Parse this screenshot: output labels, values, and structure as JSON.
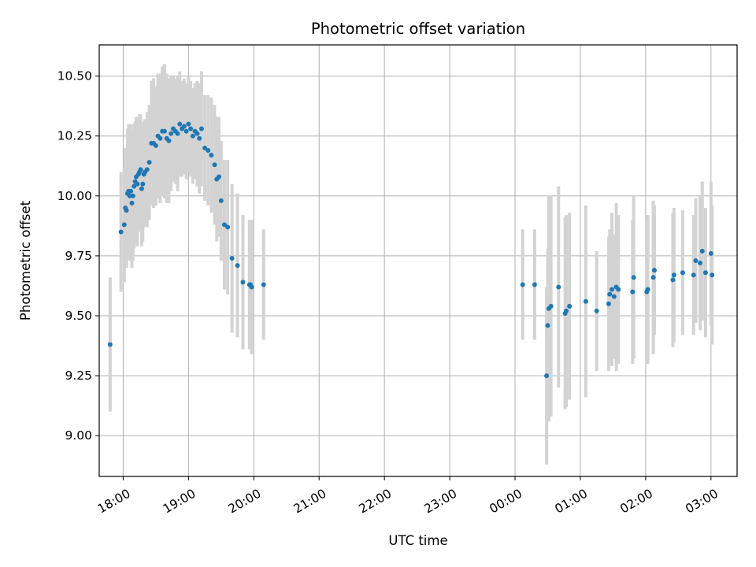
{
  "chart_data": {
    "type": "scatter",
    "title": "Photometric offset variation",
    "xlabel": "UTC time",
    "ylabel": "Photometric offset",
    "x_ticks": [
      "18:00",
      "19:00",
      "20:00",
      "21:00",
      "22:00",
      "23:00",
      "00:00",
      "01:00",
      "02:00",
      "03:00"
    ],
    "y_ticks": [
      "9.00",
      "9.25",
      "9.50",
      "9.75",
      "10.00",
      "10.25",
      "10.50"
    ],
    "xlim": [
      "17:38",
      "03:24"
    ],
    "ylim": [
      8.83,
      10.63
    ],
    "grid": true,
    "legend": "none",
    "colors": {
      "point": "#1f77b4",
      "errorbar": "#d3d3d3",
      "grid": "#b0b0b0"
    },
    "series": [
      {
        "x": [
          "17:48",
          "17:58",
          "18:01",
          "18:02",
          "18:03",
          "18:04",
          "18:05",
          "18:06",
          "18:07",
          "18:08",
          "18:09",
          "18:10",
          "18:11",
          "18:12",
          "18:13",
          "18:14",
          "18:15",
          "18:16",
          "18:17",
          "18:18",
          "18:19",
          "18:20",
          "18:22",
          "18:24",
          "18:26",
          "18:28",
          "18:30",
          "18:32",
          "18:34",
          "18:36",
          "18:38",
          "18:40",
          "18:42",
          "18:44",
          "18:46",
          "18:48",
          "18:50",
          "18:52",
          "18:54",
          "18:56",
          "18:58",
          "19:00",
          "19:02",
          "19:04",
          "19:06",
          "19:08",
          "19:10",
          "19:12",
          "19:15",
          "19:18",
          "19:21",
          "19:24",
          "19:26",
          "19:28",
          "19:30",
          "19:33",
          "19:36",
          "19:40",
          "19:45",
          "19:50",
          "19:56",
          "19:57",
          "19:58",
          "20:09",
          "00:07",
          "00:18",
          "00:29",
          "00:30",
          "00:31",
          "00:33",
          "00:40",
          "00:46",
          "00:47",
          "00:50",
          "01:05",
          "01:15",
          "01:26",
          "01:27",
          "01:29",
          "01:31",
          "01:33",
          "01:35",
          "01:48",
          "01:49",
          "02:01",
          "02:02",
          "02:07",
          "02:08",
          "02:25",
          "02:26",
          "02:34",
          "02:44",
          "02:46",
          "02:50",
          "02:52",
          "02:55",
          "03:00",
          "03:01"
        ],
        "y": [
          9.38,
          9.85,
          9.88,
          9.95,
          9.94,
          10.01,
          10.02,
          10.0,
          10.02,
          9.97,
          10.0,
          10.04,
          10.06,
          10.08,
          10.05,
          10.09,
          10.1,
          10.11,
          10.03,
          10.05,
          10.09,
          10.1,
          10.11,
          10.14,
          10.22,
          10.22,
          10.21,
          10.25,
          10.24,
          10.27,
          10.27,
          10.24,
          10.23,
          10.26,
          10.28,
          10.27,
          10.26,
          10.3,
          10.28,
          10.29,
          10.27,
          10.3,
          10.28,
          10.25,
          10.27,
          10.26,
          10.24,
          10.28,
          10.2,
          10.19,
          10.17,
          10.13,
          10.07,
          10.08,
          9.98,
          9.88,
          9.87,
          9.74,
          9.71,
          9.64,
          9.63,
          9.63,
          9.62,
          9.63,
          9.63,
          9.63,
          9.25,
          9.46,
          9.53,
          9.54,
          9.62,
          9.51,
          9.52,
          9.54,
          9.56,
          9.52,
          9.55,
          9.59,
          9.61,
          9.58,
          9.62,
          9.61,
          9.6,
          9.66,
          9.6,
          9.61,
          9.66,
          9.69,
          9.65,
          9.67,
          9.68,
          9.67,
          9.73,
          9.72,
          9.77,
          9.68,
          9.76,
          9.67
        ],
        "y_err": [
          0.28,
          0.25,
          0.24,
          0.25,
          0.24,
          0.27,
          0.28,
          0.27,
          0.28,
          0.27,
          0.27,
          0.26,
          0.25,
          0.25,
          0.26,
          0.24,
          0.24,
          0.23,
          0.24,
          0.24,
          0.22,
          0.22,
          0.24,
          0.24,
          0.26,
          0.27,
          0.25,
          0.26,
          0.27,
          0.27,
          0.28,
          0.27,
          0.26,
          0.24,
          0.22,
          0.22,
          0.24,
          0.22,
          0.2,
          0.2,
          0.2,
          0.2,
          0.2,
          0.2,
          0.2,
          0.22,
          0.23,
          0.24,
          0.22,
          0.23,
          0.24,
          0.25,
          0.26,
          0.25,
          0.25,
          0.27,
          0.28,
          0.31,
          0.3,
          0.28,
          0.27,
          0.27,
          0.28,
          0.23,
          0.23,
          0.23,
          0.37,
          0.32,
          0.47,
          0.46,
          0.42,
          0.4,
          0.4,
          0.39,
          0.4,
          0.25,
          0.28,
          0.27,
          0.32,
          0.26,
          0.35,
          0.31,
          0.3,
          0.34,
          0.3,
          0.31,
          0.32,
          0.27,
          0.28,
          0.28,
          0.26,
          0.25,
          0.26,
          0.28,
          0.29,
          0.27,
          0.3,
          0.29
        ]
      }
    ]
  }
}
